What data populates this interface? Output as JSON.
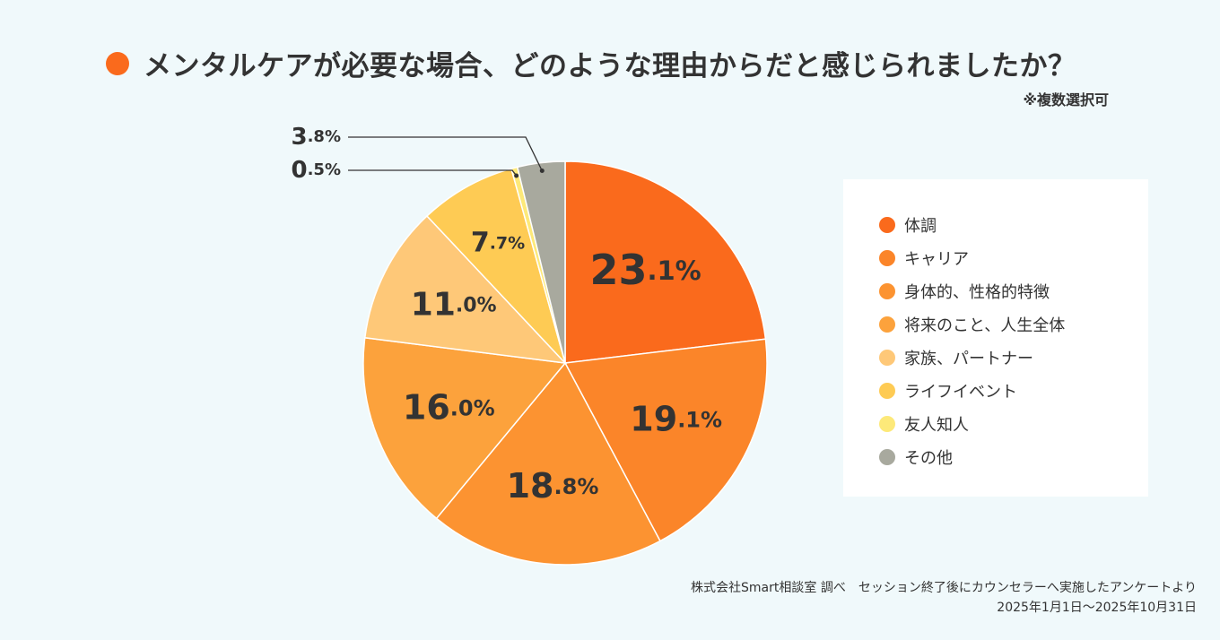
{
  "title": "メンタルケアが必要な場合、どのような理由からだと感じられましたか？",
  "note": "※複数選択可",
  "chart_data": {
    "type": "pie",
    "title": "メンタルケアが必要な場合、どのような理由からだと感じられましたか？",
    "slices": [
      {
        "label": "体調",
        "value": 23.1,
        "display_int": "23",
        "display_dec": ".1%",
        "color": "#fa6a1c"
      },
      {
        "label": "キャリア",
        "value": 19.1,
        "display_int": "19",
        "display_dec": ".1%",
        "color": "#fb8529"
      },
      {
        "label": "身体的、性格的特徴",
        "value": 18.8,
        "display_int": "18",
        "display_dec": ".8%",
        "color": "#fc9331"
      },
      {
        "label": "将来のこと、人生全体",
        "value": 16.0,
        "display_int": "16",
        "display_dec": ".0%",
        "color": "#fca23c"
      },
      {
        "label": "家族、パートナー",
        "value": 11.0,
        "display_int": "11",
        "display_dec": ".0%",
        "color": "#fec878"
      },
      {
        "label": "ライフイベント",
        "value": 7.7,
        "display_int": "7",
        "display_dec": ".7%",
        "color": "#fecb54"
      },
      {
        "label": "友人知人",
        "value": 0.5,
        "display_int": "0",
        "display_dec": ".5%",
        "color": "#fde979"
      },
      {
        "label": "その他",
        "value": 3.8,
        "display_int": "3",
        "display_dec": ".8%",
        "color": "#a8a99e"
      }
    ]
  },
  "source": {
    "line1": "株式会社Smart相談室 調べ　セッション終了後にカウンセラーへ実施したアンケートより",
    "line2": "2025年1月1日〜2025年10月31日"
  }
}
